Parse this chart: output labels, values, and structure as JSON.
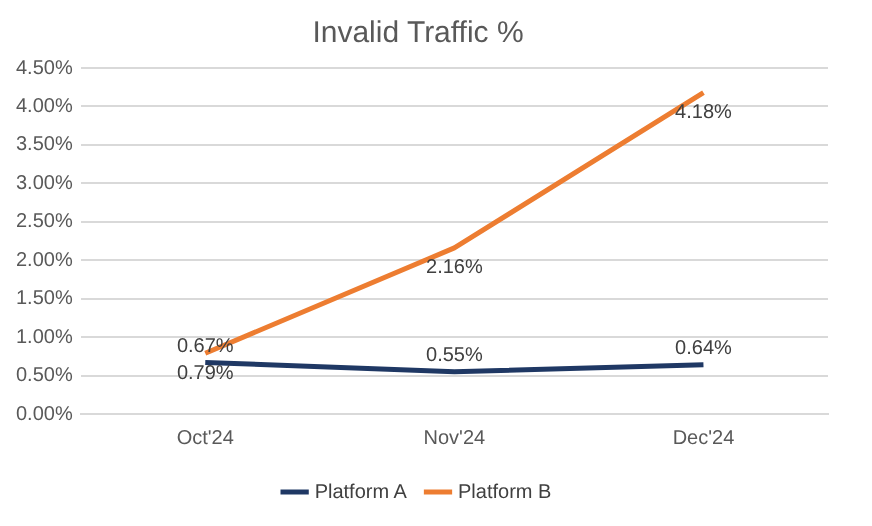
{
  "chart_data": {
    "type": "line",
    "title": "Invalid Traffic %",
    "categories": [
      "Oct'24",
      "Nov'24",
      "Dec'24"
    ],
    "series": [
      {
        "name": "Platform A",
        "color": "#1f3864",
        "values": [
          0.67,
          0.55,
          0.64
        ],
        "value_labels": [
          "0.67%",
          "0.55%",
          "0.64%"
        ]
      },
      {
        "name": "Platform B",
        "color": "#ed7d31",
        "values": [
          0.79,
          2.16,
          4.18
        ],
        "value_labels": [
          "0.79%",
          "2.16%",
          "4.18%"
        ]
      }
    ],
    "ylim": [
      0,
      4.5
    ],
    "yticks": [
      {
        "value": 0,
        "label": "0.00%"
      },
      {
        "value": 0.5,
        "label": "0.50%"
      },
      {
        "value": 1,
        "label": "1.00%"
      },
      {
        "value": 1.5,
        "label": "1.50%"
      },
      {
        "value": 2,
        "label": "2.00%"
      },
      {
        "value": 2.5,
        "label": "2.50%"
      },
      {
        "value": 3,
        "label": "3.00%"
      },
      {
        "value": 3.5,
        "label": "3.50%"
      },
      {
        "value": 4,
        "label": "4.00%"
      },
      {
        "value": 4.5,
        "label": "4.50%"
      }
    ],
    "grid": "y",
    "legend": "bottom",
    "marker": "none",
    "line_style": "solid"
  }
}
